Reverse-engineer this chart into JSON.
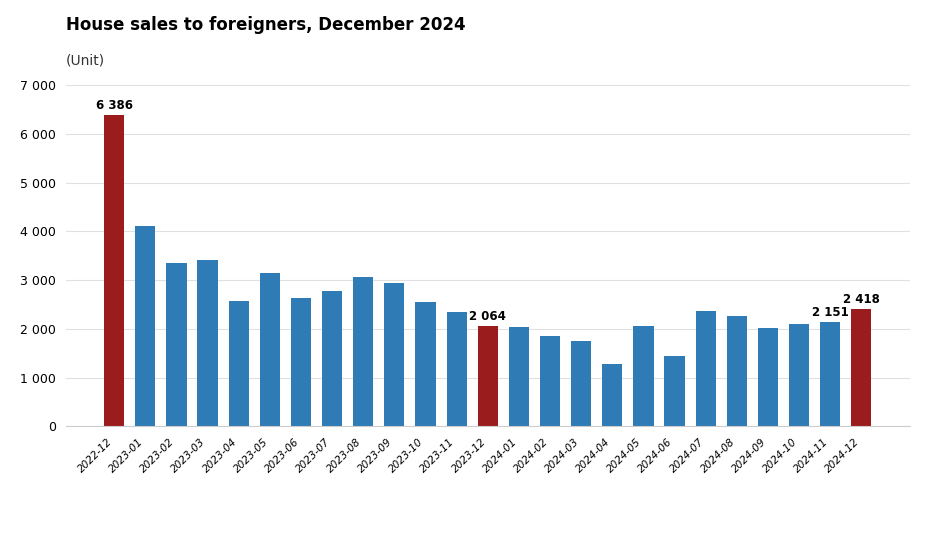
{
  "title": "House sales to foreigners, December 2024",
  "subtitle": "(Unit)",
  "categories": [
    "2022-12",
    "2023-01",
    "2023-02",
    "2023-03",
    "2023-04",
    "2023-05",
    "2023-06",
    "2023-07",
    "2023-08",
    "2023-09",
    "2023-10",
    "2023-11",
    "2023-12",
    "2024-01",
    "2024-02",
    "2024-03",
    "2024-04",
    "2024-05",
    "2024-06",
    "2024-07",
    "2024-08",
    "2024-09",
    "2024-10",
    "2024-11",
    "2024-12"
  ],
  "values": [
    6386,
    4119,
    3354,
    3410,
    2570,
    3155,
    2640,
    2780,
    3060,
    2950,
    2555,
    2345,
    2064,
    2050,
    1845,
    1760,
    1290,
    2055,
    1440,
    2365,
    2265,
    2010,
    2110,
    2151,
    2418
  ],
  "bar_colors": [
    "#9b1c1c",
    "#2e7bb5",
    "#2e7bb5",
    "#2e7bb5",
    "#2e7bb5",
    "#2e7bb5",
    "#2e7bb5",
    "#2e7bb5",
    "#2e7bb5",
    "#2e7bb5",
    "#2e7bb5",
    "#2e7bb5",
    "#9b1c1c",
    "#2e7bb5",
    "#2e7bb5",
    "#2e7bb5",
    "#2e7bb5",
    "#2e7bb5",
    "#2e7bb5",
    "#2e7bb5",
    "#2e7bb5",
    "#2e7bb5",
    "#2e7bb5",
    "#2e7bb5",
    "#9b1c1c"
  ],
  "annotations": {
    "0": "6 386",
    "12": "2 064",
    "23": "2 151",
    "24": "2 418"
  },
  "ylim": [
    0,
    7000
  ],
  "yticks": [
    0,
    1000,
    2000,
    3000,
    4000,
    5000,
    6000,
    7000
  ],
  "ytick_labels": [
    "0",
    "1 000",
    "2 000",
    "3 000",
    "4 000",
    "5 000",
    "6 000",
    "7 000"
  ],
  "background_color": "#ffffff",
  "bar_width": 0.65,
  "title_fontsize": 12,
  "subtitle_fontsize": 10,
  "annotation_fontsize": 8.5,
  "xtick_fontsize": 7.5,
  "ytick_fontsize": 9
}
